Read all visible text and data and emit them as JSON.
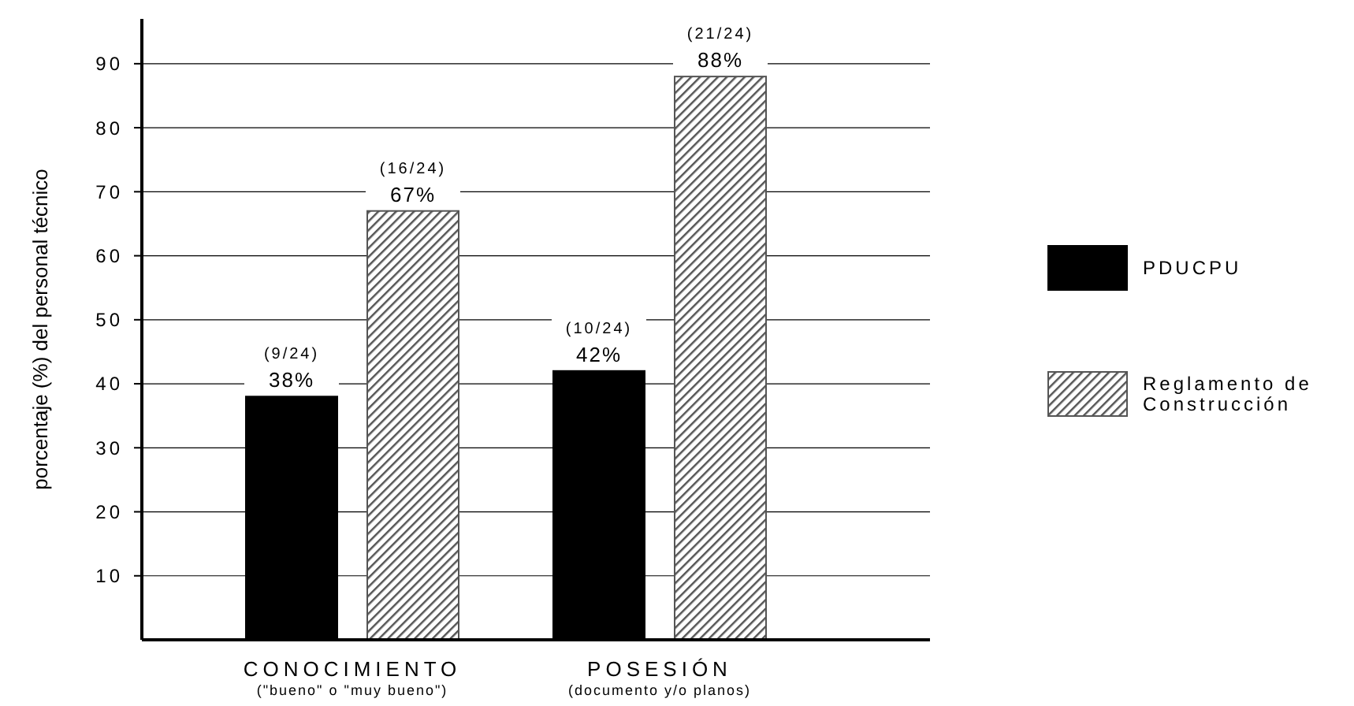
{
  "chart_data": {
    "type": "bar",
    "ylabel": "porcentaje (%) del personal técnico",
    "categories": [
      "CONOCIMIENTO\n(\"bueno\" o \"muy bueno\")",
      "POSESIÓN\n(documento y/o planos)"
    ],
    "series": [
      {
        "name": "PDUCPU",
        "color": "#000000",
        "values": [
          38,
          42
        ],
        "value_labels": [
          "(9/24)\n38%",
          "(10/24)\n42%"
        ]
      },
      {
        "name": "Reglamento de\nConstrucción",
        "color": "#555555",
        "values": [
          67,
          88
        ],
        "value_labels": [
          "(16/24)\n67%",
          "(21/24)\n88%"
        ]
      }
    ],
    "ylim": [
      0,
      97
    ],
    "yticks": [
      10,
      20,
      30,
      40,
      50,
      60,
      70,
      80,
      90
    ],
    "grid": "y",
    "legend": "right"
  }
}
